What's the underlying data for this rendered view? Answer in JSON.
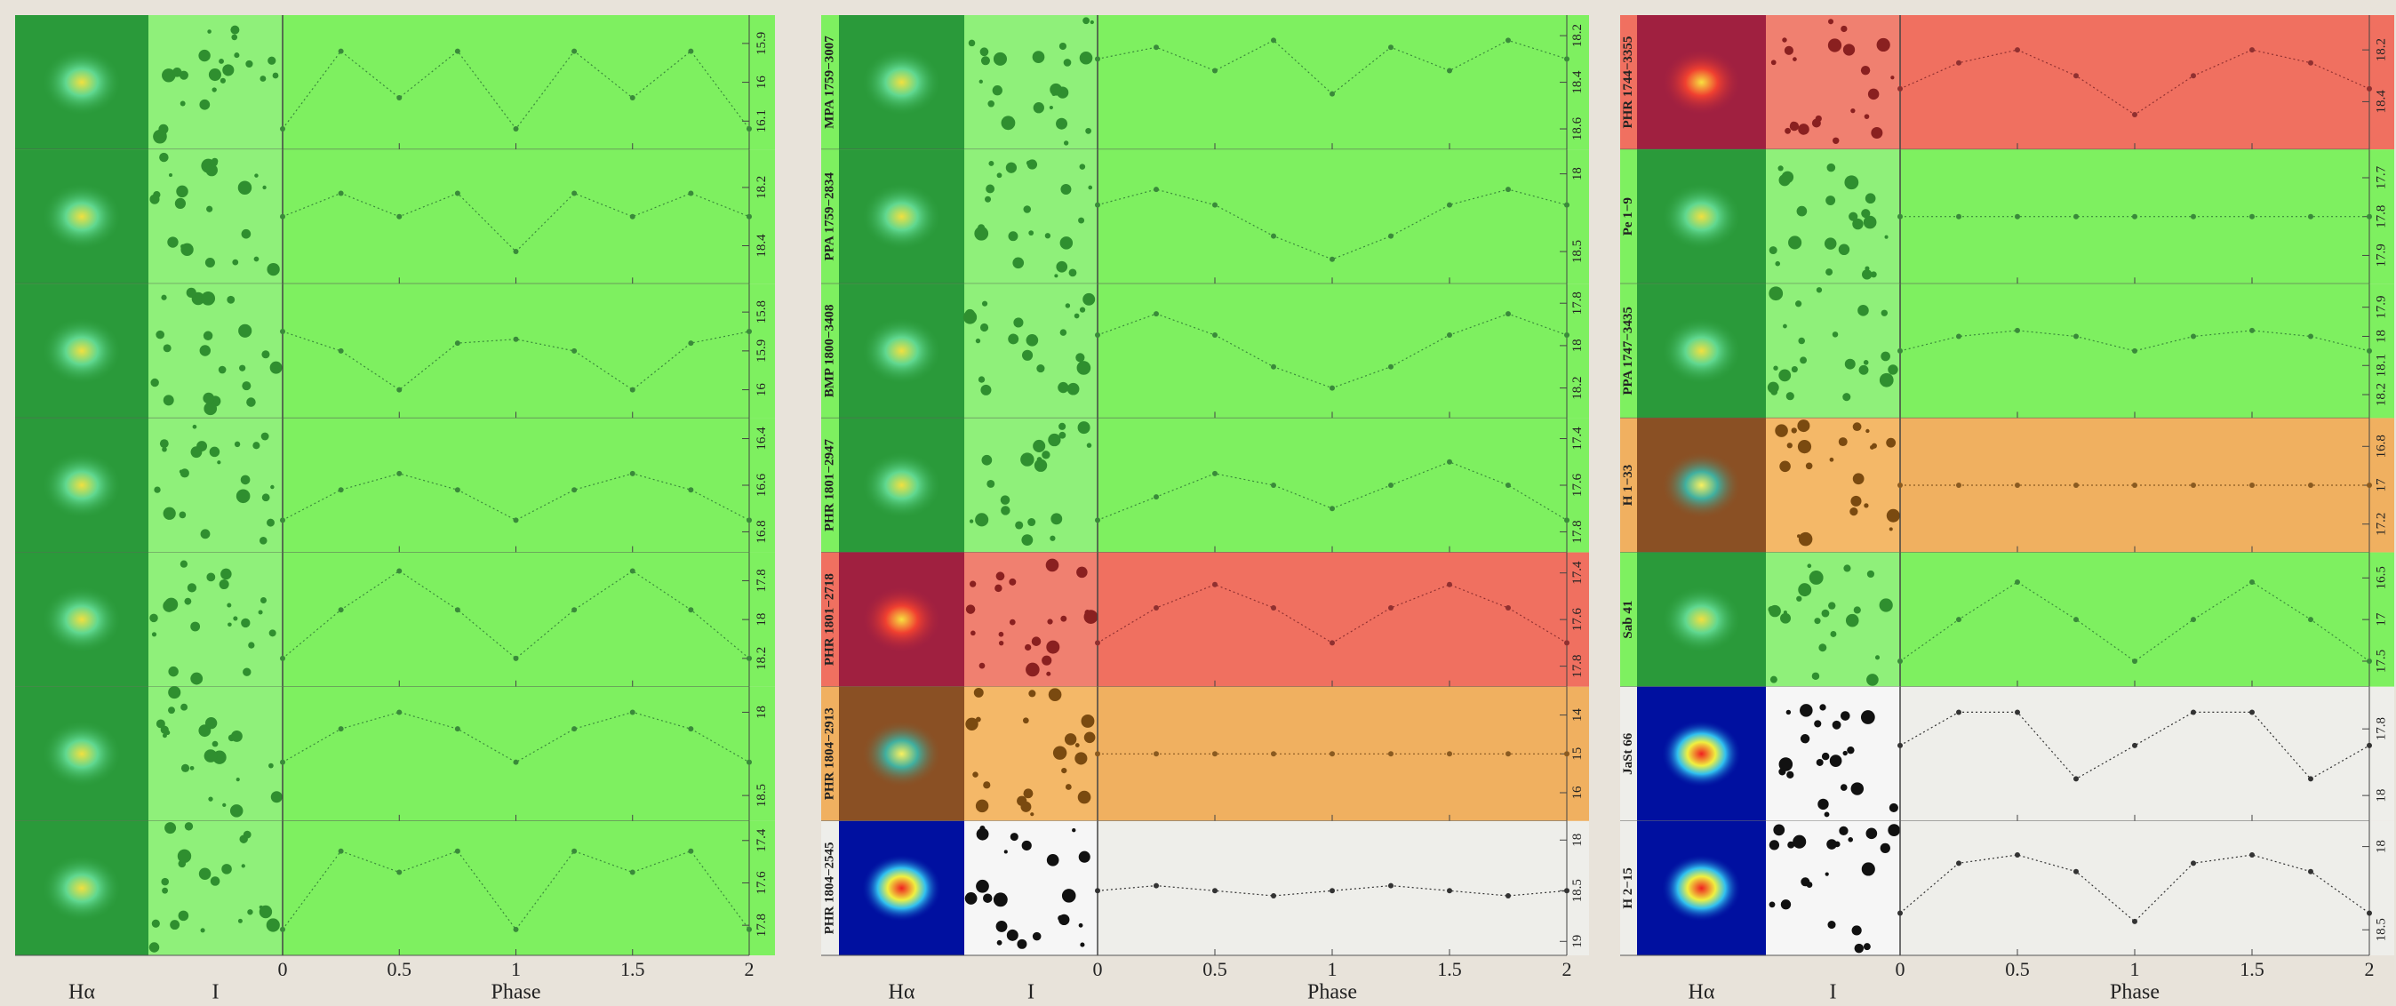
{
  "phases": [
    0,
    0.25,
    0.5,
    0.75,
    1,
    1.25,
    1.5,
    1.75,
    2
  ],
  "columns": [
    {
      "labels": {
        "halpha": "Hα",
        "i": "I",
        "phase": "Phase"
      },
      "xticks": [
        0,
        0.5,
        1,
        1.5,
        2
      ],
      "panels": [
        {
          "color": "#7ef060",
          "ylim": [
            15.85,
            16.15
          ],
          "yticks": [
            15.9,
            16,
            16.1
          ],
          "curve": [
            16.12,
            15.92,
            16.04,
            15.92,
            16.12,
            15.92,
            16.04,
            15.92,
            16.12
          ]
        },
        {
          "color": "#7ef060",
          "ylim": [
            18.1,
            18.5
          ],
          "yticks": [
            18.2,
            18.4
          ],
          "curve": [
            18.3,
            18.22,
            18.3,
            18.22,
            18.42,
            18.22,
            18.3,
            18.22,
            18.3
          ]
        },
        {
          "color": "#7ef060",
          "ylim": [
            15.75,
            16.05
          ],
          "yticks": [
            15.8,
            15.9,
            16
          ],
          "curve": [
            15.85,
            15.9,
            16.0,
            15.88,
            15.87,
            15.9,
            16.0,
            15.88,
            15.85
          ]
        },
        {
          "color": "#7ef060",
          "ylim": [
            16.35,
            16.85
          ],
          "yticks": [
            16.4,
            16.6,
            16.8
          ],
          "curve": [
            16.75,
            16.62,
            16.55,
            16.62,
            16.75,
            16.62,
            16.55,
            16.62,
            16.75
          ]
        },
        {
          "color": "#7ef060",
          "ylim": [
            17.7,
            18.3
          ],
          "yticks": [
            17.8,
            18,
            18.2
          ],
          "curve": [
            18.2,
            17.95,
            17.75,
            17.95,
            18.2,
            17.95,
            17.75,
            17.95,
            18.2
          ]
        },
        {
          "color": "#7ef060",
          "ylim": [
            17.9,
            18.6
          ],
          "yticks": [
            18,
            18.5
          ],
          "curve": [
            18.3,
            18.1,
            18.0,
            18.1,
            18.3,
            18.1,
            18.0,
            18.1,
            18.3
          ]
        },
        {
          "color": "#7ef060",
          "ylim": [
            17.35,
            17.9
          ],
          "yticks": [
            17.4,
            17.6,
            17.8
          ],
          "curve": [
            17.82,
            17.45,
            17.55,
            17.45,
            17.82,
            17.45,
            17.55,
            17.45,
            17.82
          ]
        }
      ]
    },
    {
      "labels": {
        "halpha": "Hα",
        "i": "I",
        "phase": "Phase"
      },
      "xticks": [
        0,
        0.5,
        1,
        1.5,
        2
      ],
      "panels": [
        {
          "name": "MPA 1759−3007",
          "color": "#7ef060",
          "ylim": [
            18.15,
            18.65
          ],
          "yticks": [
            18.2,
            18.4,
            18.6
          ],
          "curve": [
            18.3,
            18.25,
            18.35,
            18.22,
            18.45,
            18.25,
            18.35,
            18.22,
            18.3
          ]
        },
        {
          "name": "PPA 1759−2834",
          "color": "#7ef060",
          "ylim": [
            17.9,
            18.65
          ],
          "yticks": [
            18,
            18.5
          ],
          "curve": [
            18.2,
            18.1,
            18.2,
            18.4,
            18.55,
            18.4,
            18.2,
            18.1,
            18.2
          ]
        },
        {
          "name": "BMP 1800−3408",
          "color": "#7ef060",
          "ylim": [
            17.75,
            18.3
          ],
          "yticks": [
            17.8,
            18,
            18.2
          ],
          "curve": [
            17.95,
            17.85,
            17.95,
            18.1,
            18.2,
            18.1,
            17.95,
            17.85,
            17.95
          ]
        },
        {
          "name": "PHR 1801−2947",
          "color": "#7ef060",
          "ylim": [
            17.35,
            17.85
          ],
          "yticks": [
            17.4,
            17.6,
            17.8
          ],
          "curve": [
            17.75,
            17.65,
            17.55,
            17.6,
            17.7,
            17.6,
            17.5,
            17.6,
            17.75
          ]
        },
        {
          "name": "PHR 1801−2718",
          "color": "#f07060",
          "ylim": [
            17.35,
            17.85
          ],
          "yticks": [
            17.4,
            17.6,
            17.8
          ],
          "curve": [
            17.7,
            17.55,
            17.45,
            17.55,
            17.7,
            17.55,
            17.45,
            17.55,
            17.7
          ]
        },
        {
          "name": "PHR 1804−2913",
          "color": "#f0b060",
          "ylim": [
            13.5,
            16.5
          ],
          "yticks": [
            14,
            15,
            16
          ],
          "curve": [
            15,
            15,
            15,
            15,
            15,
            15,
            15,
            15,
            15
          ]
        },
        {
          "name": "PHR 1804−2545",
          "color": "#eeeeea",
          "ylim": [
            17.9,
            19.05
          ],
          "yticks": [
            18,
            18.5,
            19
          ],
          "curve": [
            18.5,
            18.45,
            18.5,
            18.55,
            18.5,
            18.45,
            18.5,
            18.55,
            18.5
          ]
        }
      ]
    },
    {
      "labels": {
        "halpha": "Hα",
        "i": "I",
        "phase": "Phase"
      },
      "xticks": [
        0,
        0.5,
        1,
        1.5,
        2
      ],
      "panels": [
        {
          "name": "PHR 1744−3355",
          "color": "#f07060",
          "ylim": [
            18.1,
            18.55
          ],
          "yticks": [
            18.2,
            18.4
          ],
          "curve": [
            18.35,
            18.25,
            18.2,
            18.3,
            18.45,
            18.3,
            18.2,
            18.25,
            18.35
          ]
        },
        {
          "name": "Pe 1−9",
          "color": "#7ef060",
          "ylim": [
            17.65,
            17.95
          ],
          "yticks": [
            17.7,
            17.8,
            17.9
          ],
          "curve": [
            17.8,
            17.8,
            17.8,
            17.8,
            17.8,
            17.8,
            17.8,
            17.8,
            17.8
          ]
        },
        {
          "name": "PPA 1747−3435",
          "color": "#7ef060",
          "ylim": [
            17.85,
            18.25
          ],
          "yticks": [
            17.9,
            18,
            18.1,
            18.2
          ],
          "curve": [
            18.05,
            18.0,
            17.98,
            18.0,
            18.05,
            18.0,
            17.98,
            18.0,
            18.05
          ]
        },
        {
          "name": "H 1−33",
          "color": "#f0b060",
          "ylim": [
            16.7,
            17.3
          ],
          "yticks": [
            16.8,
            17,
            17.2
          ],
          "curve": [
            17.0,
            17.0,
            17.0,
            17.0,
            17.0,
            17.0,
            17.0,
            17.0,
            17.0
          ]
        },
        {
          "name": "Sab 41",
          "color": "#7ef060",
          "ylim": [
            16.3,
            17.7
          ],
          "yticks": [
            16.5,
            17,
            17.5
          ],
          "curve": [
            17.5,
            17.0,
            16.55,
            17.0,
            17.5,
            17.0,
            16.55,
            17.0,
            17.5
          ]
        },
        {
          "name": "JaSt 66",
          "color": "#eeeeea",
          "ylim": [
            17.7,
            18.05
          ],
          "yticks": [
            17.8,
            18
          ],
          "curve": [
            17.85,
            17.75,
            17.75,
            17.95,
            17.85,
            17.75,
            17.75,
            17.95,
            17.85
          ]
        },
        {
          "name": "H 2−15",
          "color": "#eeeeea",
          "ylim": [
            17.9,
            18.6
          ],
          "yticks": [
            18,
            18.5
          ],
          "curve": [
            18.4,
            18.1,
            18.05,
            18.15,
            18.45,
            18.1,
            18.05,
            18.15,
            18.4
          ]
        }
      ]
    }
  ]
}
